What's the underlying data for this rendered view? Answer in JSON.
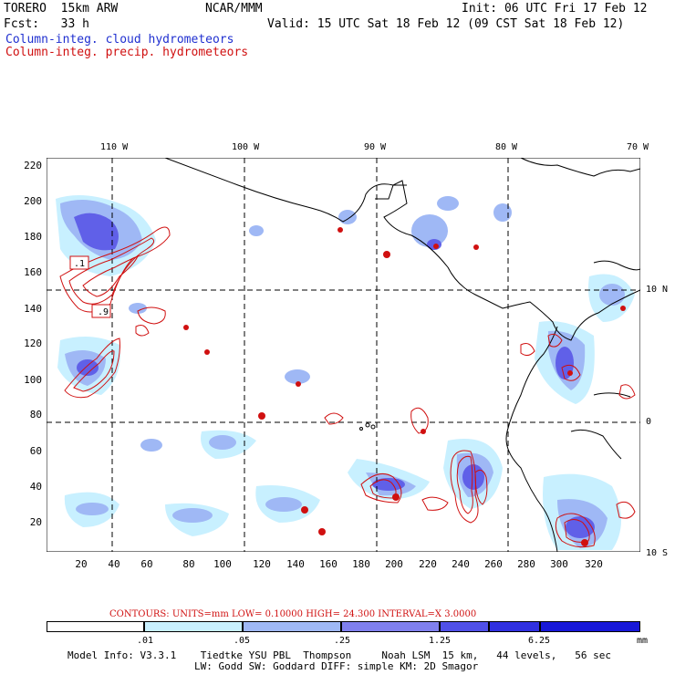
{
  "header": {
    "model": "TORERO  15km ARW",
    "org": "NCAR/MMM",
    "init": "Init: 06 UTC Fri 17 Feb 12",
    "fcst": "Fcst:   33 h",
    "valid": "Valid: 15 UTC Sat 18 Feb 12 (09 CST Sat 18 Feb 12)",
    "field1": "Column-integ. cloud hydrometeors",
    "field2": "Column-integ. precip. hydrometeors"
  },
  "axes": {
    "y_ticks": [
      "220",
      "200",
      "180",
      "160",
      "140",
      "120",
      "100",
      "80",
      "60",
      "40",
      "20"
    ],
    "x_ticks": [
      "20",
      "40",
      "60",
      "80",
      "100",
      "120",
      "140",
      "160",
      "180",
      "200",
      "220",
      "240",
      "260",
      "280",
      "300",
      "320"
    ],
    "lon_labels": [
      "110 W",
      "100 W",
      "90 W",
      "80 W",
      "70 W"
    ],
    "lat_labels": [
      "10 N",
      "0",
      "10 S"
    ]
  },
  "contour_labels": [
    ".1",
    ".9"
  ],
  "contours": {
    "text": "CONTOURS:  UNITS=mm  LOW= 0.10000      HIGH=  24.300     INTERVAL=X  3.0000"
  },
  "colorbar": {
    "levels": [
      ".01",
      ".05",
      ".25",
      "1.25",
      "6.25"
    ],
    "units": "mm",
    "colors": [
      "#ffffff",
      "#c8f0ff",
      "#9fb8f5",
      "#8080ee",
      "#5050e8",
      "#3030e0",
      "#1818d8"
    ]
  },
  "footer": {
    "line1": "Model Info: V3.3.1    Tiedtke YSU PBL  Thompson     Noah LSM  15 km,   44 levels,   56 sec",
    "line2": "LW: Godd SW: Goddard DIFF: simple KM: 2D Smagor"
  }
}
